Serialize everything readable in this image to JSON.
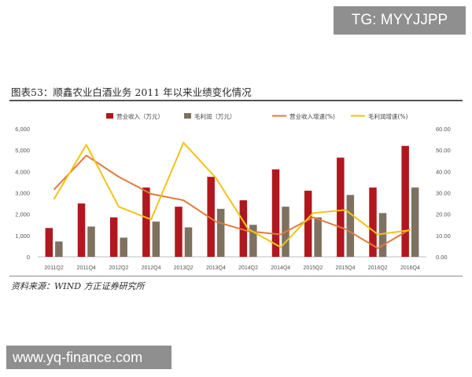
{
  "watermarks": {
    "top": "TG: MYYJJPP",
    "bottom": "www.yq-finance.com"
  },
  "figure": {
    "title": "图表53：顺鑫农业白酒业务 2011 年以来业绩变化情况",
    "source": "资料来源：WIND   方正证券研究所"
  },
  "chart_data": {
    "type": "bar",
    "categories": [
      "2011Q2",
      "2011Q4",
      "2012Q2",
      "2012Q4",
      "2013Q2",
      "2013Q4",
      "2014Q2",
      "2014Q4",
      "2015Q2",
      "2015Q4",
      "2016Q2",
      "2016Q4"
    ],
    "series": [
      {
        "name": "营业收入（万元）",
        "kind": "bar",
        "axis": "left",
        "color": "#b0181e",
        "values": [
          1350,
          2500,
          1850,
          3250,
          2350,
          3750,
          2650,
          4100,
          3100,
          4650,
          3250,
          5200
        ]
      },
      {
        "name": "毛利润（万元）",
        "kind": "bar",
        "axis": "left",
        "color": "#7f7160",
        "values": [
          720,
          1420,
          900,
          1650,
          1380,
          2250,
          1500,
          2350,
          1850,
          2900,
          2050,
          3250
        ]
      },
      {
        "name": "营业收入增速(%)",
        "kind": "line",
        "axis": "right",
        "color": "#e07b3c",
        "values": [
          31.5,
          47.5,
          37.5,
          29.5,
          26.5,
          16.5,
          12,
          10.5,
          18.5,
          13,
          4,
          13
        ]
      },
      {
        "name": "毛利润增速(%)",
        "kind": "line",
        "axis": "right",
        "color": "#f2c318",
        "values": [
          27,
          52.5,
          23.5,
          17.5,
          53.5,
          37,
          13,
          4.5,
          20.5,
          22,
          10.5,
          12.5
        ]
      }
    ],
    "left_axis": {
      "min": 0,
      "max": 6000,
      "ticks": [
        "0",
        "1,000",
        "2,000",
        "3,000",
        "4,000",
        "5,000",
        "6,000"
      ]
    },
    "right_axis": {
      "min": 0,
      "max": 60,
      "ticks": [
        "0.00",
        "10.00",
        "20.00",
        "30.00",
        "40.00",
        "50.00",
        "60.00"
      ]
    },
    "legend_position": "top",
    "grid": false
  }
}
